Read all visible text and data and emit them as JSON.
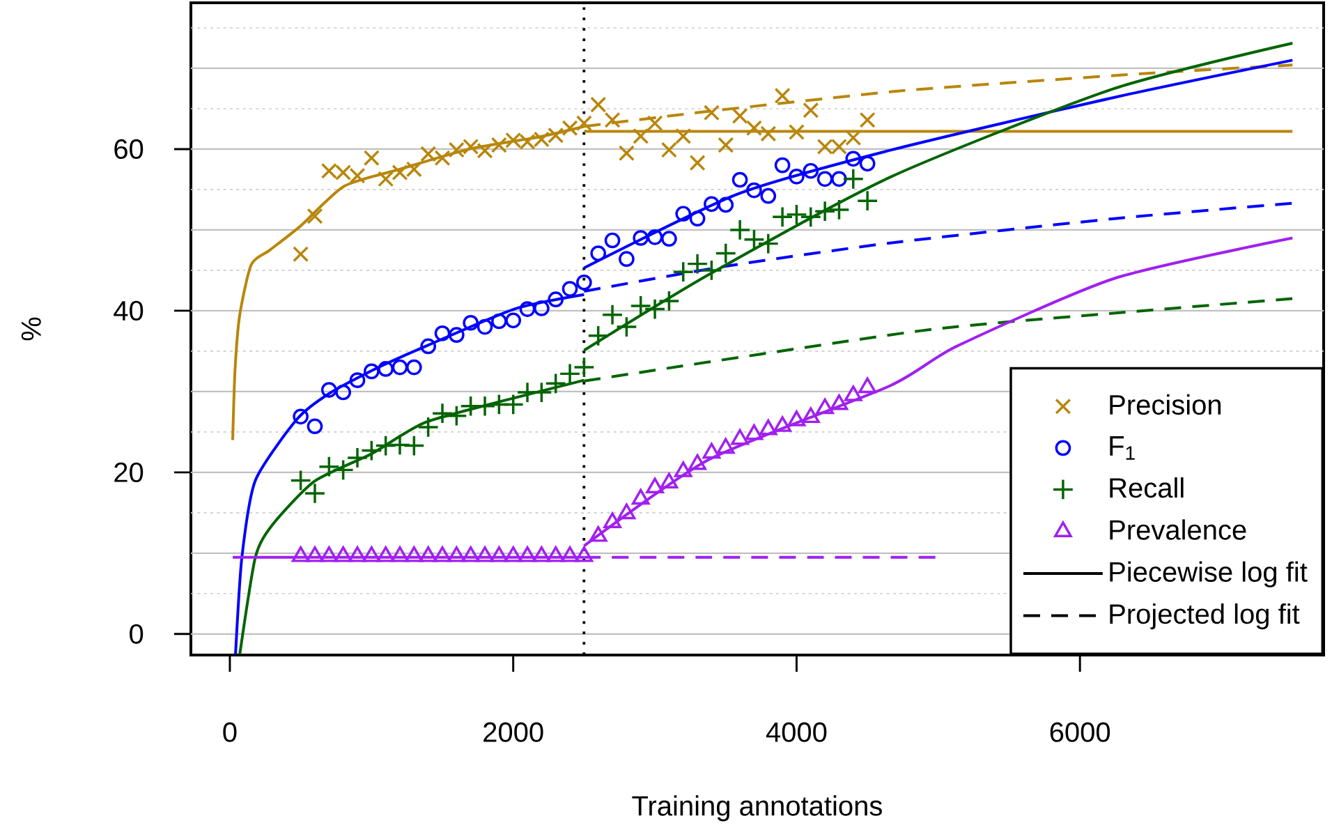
{
  "chart_data": {
    "type": "scatter",
    "xlabel": "Training annotations",
    "ylabel": "%",
    "x": [
      500,
      600,
      700,
      800,
      900,
      1000,
      1100,
      1200,
      1300,
      1400,
      1500,
      1600,
      1700,
      1800,
      1900,
      2000,
      2100,
      2200,
      2300,
      2400,
      2500,
      2600,
      2700,
      2800,
      2900,
      3000,
      3100,
      3200,
      3300,
      3400,
      3500,
      3600,
      3700,
      3800,
      3900,
      4000,
      4100,
      4200,
      4300,
      4400,
      4500
    ],
    "xlim": [
      -275,
      7720
    ],
    "ylim": [
      -2.6,
      78.1
    ],
    "xticks": [
      0,
      2000,
      4000,
      6000
    ],
    "yticks": [
      0,
      20,
      40,
      60
    ],
    "grid": "y",
    "legend": "bottom right",
    "ref_lines": [
      {
        "axis": "x",
        "value": 2500,
        "color": "#000000",
        "line_style": "dotted"
      }
    ],
    "series": [
      {
        "name": "Precision",
        "color": "#b8860b",
        "marker": "cross",
        "values": [
          47.0,
          51.7,
          57.3,
          57.1,
          56.7,
          58.9,
          56.3,
          57.1,
          57.5,
          59.4,
          58.9,
          59.9,
          60.3,
          59.8,
          60.5,
          61.1,
          60.9,
          61.2,
          61.7,
          62.6,
          63.2,
          65.5,
          63.6,
          59.5,
          61.6,
          63.2,
          59.9,
          61.6,
          58.3,
          64.5,
          60.5,
          64.1,
          62.6,
          61.9,
          66.6,
          62.1,
          64.8,
          60.3,
          60.3,
          61.4,
          63.6
        ]
      },
      {
        "name": "F$_{1}$",
        "color": "#0000ff",
        "marker": "circle",
        "values": [
          26.9,
          25.7,
          30.2,
          29.9,
          31.4,
          32.5,
          32.8,
          33.0,
          33.0,
          35.6,
          37.2,
          37.0,
          38.5,
          38.0,
          38.7,
          38.8,
          40.2,
          40.3,
          41.4,
          42.7,
          43.5,
          47.1,
          48.7,
          46.4,
          49.0,
          49.1,
          48.9,
          52.0,
          51.4,
          53.2,
          53.1,
          56.2,
          54.9,
          54.2,
          58.0,
          56.6,
          57.3,
          56.3,
          56.3,
          58.8,
          58.2
        ]
      },
      {
        "name": "Recall",
        "color": "#006400",
        "marker": "plus",
        "values": [
          19.0,
          17.4,
          20.7,
          20.3,
          21.8,
          22.7,
          23.3,
          23.4,
          23.3,
          25.6,
          27.3,
          27.0,
          28.2,
          28.2,
          28.4,
          28.4,
          29.9,
          29.9,
          31.0,
          32.2,
          33.0,
          36.9,
          39.5,
          38.0,
          40.6,
          40.2,
          41.2,
          44.8,
          45.8,
          45.0,
          47.1,
          50.0,
          48.8,
          48.3,
          51.6,
          51.9,
          51.6,
          52.3,
          52.5,
          56.3,
          53.6
        ]
      },
      {
        "name": "Prevalence",
        "color": "#a020f0",
        "marker": "triangle",
        "values": [
          9.6,
          9.6,
          9.6,
          9.6,
          9.6,
          9.6,
          9.6,
          9.6,
          9.6,
          9.6,
          9.6,
          9.6,
          9.6,
          9.6,
          9.6,
          9.6,
          9.6,
          9.6,
          9.6,
          9.6,
          9.6,
          12.1,
          13.8,
          14.9,
          16.7,
          18.1,
          18.7,
          20.1,
          21.0,
          22.4,
          23.0,
          24.1,
          24.7,
          25.3,
          25.7,
          26.4,
          26.8,
          27.9,
          28.4,
          29.5,
          30.5
        ]
      },
      {
        "type": "line",
        "color": "#b8860b",
        "line_style": "solid",
        "x": [
          20,
          36,
          69,
          151,
          282,
          500,
          806,
          1199,
          1691,
          2183,
          2500
        ],
        "values": [
          24.0,
          32.5,
          39.4,
          45.7,
          47.5,
          50.5,
          55.4,
          57.5,
          60.0,
          61.5,
          62.8
        ]
      },
      {
        "type": "line",
        "color": "#b8860b",
        "line_style": "solid",
        "x": [
          2500,
          7500
        ],
        "values": [
          62.2,
          62.2
        ]
      },
      {
        "type": "line",
        "color": "#b8860b",
        "line_style": "dashed",
        "x": [
          2500,
          3392,
          4670,
          5500,
          6500,
          7500
        ],
        "values": [
          62.8,
          64.7,
          67.1,
          68.2,
          69.4,
          70.4
        ]
      },
      {
        "type": "line",
        "color": "#0000ff",
        "line_style": "solid",
        "x": [
          40,
          85,
          180,
          475,
          705,
          1050,
          1382,
          2007,
          2500
        ],
        "values": [
          -2.5,
          9.5,
          19.0,
          26.6,
          29.8,
          33.0,
          35.6,
          40.2,
          42.0
        ]
      },
      {
        "type": "line",
        "color": "#0000ff",
        "line_style": "solid",
        "x": [
          2500,
          3579,
          4670,
          6244,
          7500
        ],
        "values": [
          45.3,
          54.4,
          59.9,
          66.4,
          71.0
        ]
      },
      {
        "type": "line",
        "color": "#0000ff",
        "line_style": "dashed",
        "x": [
          2500,
          3500,
          4670,
          6244,
          7500
        ],
        "values": [
          42.4,
          45.5,
          48.4,
          51.4,
          53.3
        ]
      },
      {
        "type": "line",
        "color": "#006400",
        "line_style": "solid",
        "x": [
          70,
          180,
          300,
          597,
          1000,
          1382,
          2007,
          2500
        ],
        "values": [
          -2.5,
          9.5,
          13.5,
          18.9,
          22.3,
          26.2,
          29.2,
          31.4
        ]
      },
      {
        "type": "line",
        "color": "#006400",
        "line_style": "solid",
        "x": [
          2500,
          3383,
          4670,
          6244,
          7500
        ],
        "values": [
          35.1,
          44.5,
          56.6,
          67.5,
          73.1
        ]
      },
      {
        "type": "line",
        "color": "#006400",
        "line_style": "dashed",
        "x": [
          2500,
          4867,
          6244,
          7500
        ],
        "values": [
          31.3,
          37.5,
          39.7,
          41.5
        ]
      },
      {
        "type": "line",
        "color": "#a020f0",
        "line_style": "solid",
        "x": [
          20,
          2500
        ],
        "values": [
          9.5,
          9.5
        ]
      },
      {
        "type": "line",
        "color": "#a020f0",
        "line_style": "solid",
        "x": [
          2500,
          3383,
          4658,
          5130,
          6244,
          7500
        ],
        "values": [
          10.9,
          21.6,
          30.7,
          35.6,
          44.0,
          49.0
        ]
      },
      {
        "type": "line",
        "color": "#a020f0",
        "line_style": "dashed",
        "x": [
          2500,
          5000
        ],
        "values": [
          9.5,
          9.5
        ]
      },
      {
        "type": "line",
        "name": "Piecewise log fit",
        "color": "#000000",
        "line_style": "solid",
        "values": [
          null,
          null,
          null,
          null,
          null,
          null,
          null,
          null,
          null,
          null,
          null,
          null,
          null,
          null,
          null,
          null,
          null,
          null,
          null,
          null,
          null,
          null,
          null,
          null,
          null,
          null,
          null,
          null,
          null,
          null,
          null,
          null,
          null,
          null,
          null,
          null,
          null,
          null,
          null,
          null,
          null
        ]
      },
      {
        "type": "line",
        "name": "Projected log fit",
        "color": "#000000",
        "line_style": "dashed",
        "values": [
          null,
          null,
          null,
          null,
          null,
          null,
          null,
          null,
          null,
          null,
          null,
          null,
          null,
          null,
          null,
          null,
          null,
          null,
          null,
          null,
          null,
          null,
          null,
          null,
          null,
          null,
          null,
          null,
          null,
          null,
          null,
          null,
          null,
          null,
          null,
          null,
          null,
          null,
          null,
          null,
          null
        ]
      }
    ]
  }
}
